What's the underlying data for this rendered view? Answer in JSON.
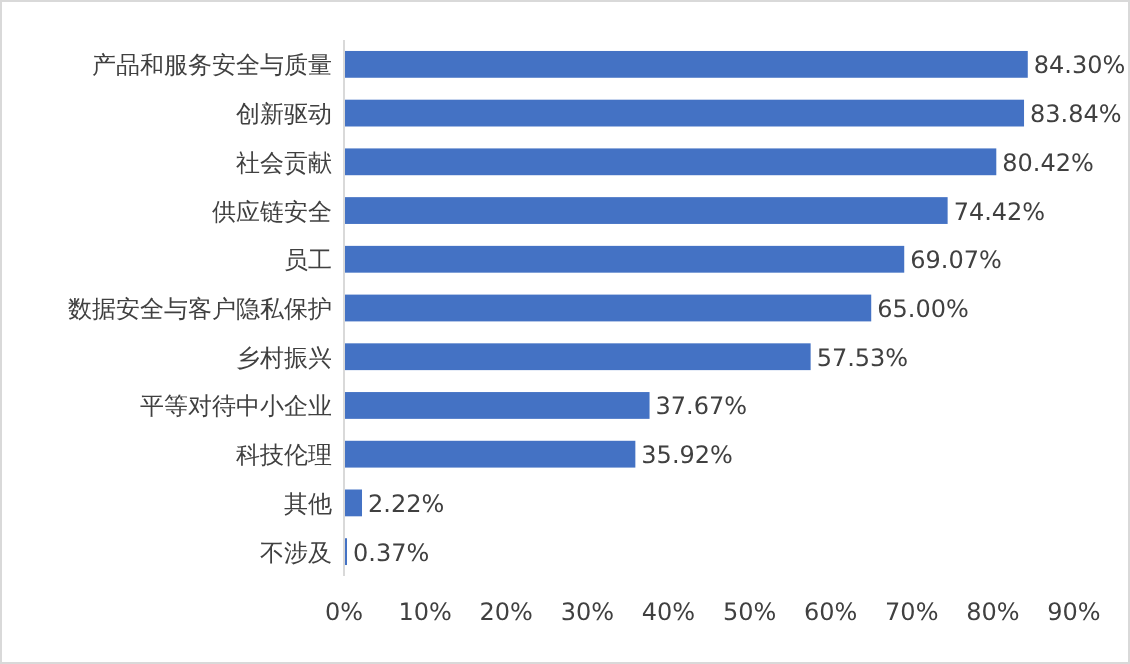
{
  "chart_data": {
    "type": "bar",
    "orientation": "horizontal",
    "color": "#4472c4",
    "categories": [
      "产品和服务安全与质量",
      "创新驱动",
      "社会贡献",
      "供应链安全",
      "员工",
      "数据安全与客户隐私保护",
      "乡村振兴",
      "平等对待中小企业",
      "科技伦理",
      "其他",
      "不涉及"
    ],
    "values": [
      84.3,
      83.84,
      80.42,
      74.42,
      69.07,
      65.0,
      57.53,
      37.67,
      35.92,
      2.22,
      0.37
    ],
    "value_labels": [
      "84.30%",
      "83.84%",
      "80.42%",
      "74.42%",
      "69.07%",
      "65.00%",
      "57.53%",
      "37.67%",
      "35.92%",
      "2.22%",
      "0.37%"
    ],
    "xlim": [
      0,
      90
    ],
    "xticks": [
      {
        "value": 0,
        "label": "0%"
      },
      {
        "value": 10,
        "label": "10%"
      },
      {
        "value": 20,
        "label": "20%"
      },
      {
        "value": 30,
        "label": "30%"
      },
      {
        "value": 40,
        "label": "40%"
      },
      {
        "value": 50,
        "label": "50%"
      },
      {
        "value": 60,
        "label": "60%"
      },
      {
        "value": 70,
        "label": "70%"
      },
      {
        "value": 80,
        "label": "80%"
      },
      {
        "value": 90,
        "label": "90%"
      }
    ]
  }
}
